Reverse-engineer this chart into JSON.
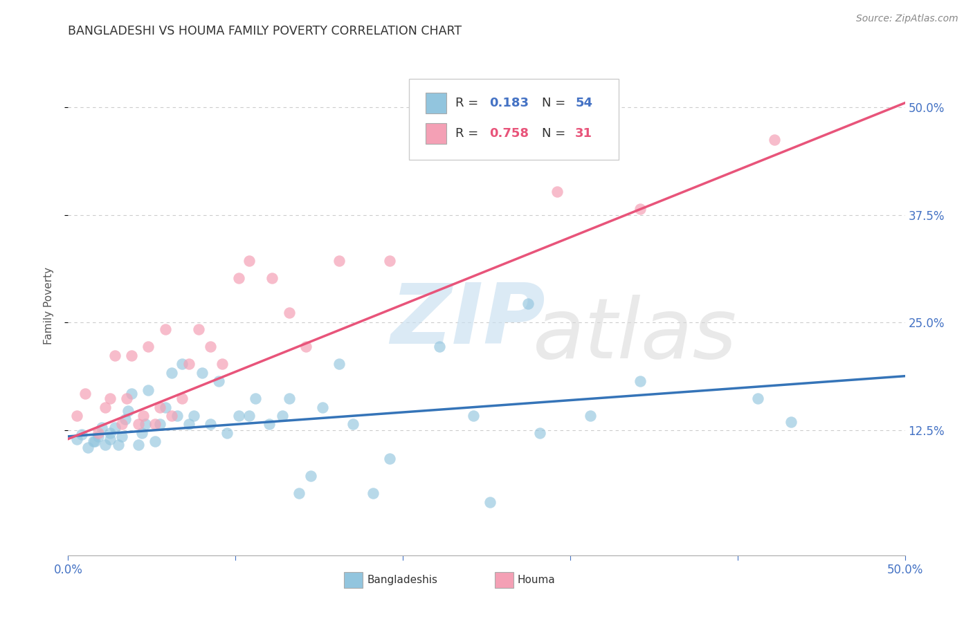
{
  "title": "BANGLADESHI VS HOUMA FAMILY POVERTY CORRELATION CHART",
  "source": "Source: ZipAtlas.com",
  "ylabel": "Family Poverty",
  "ytick_labels": [
    "12.5%",
    "25.0%",
    "37.5%",
    "50.0%"
  ],
  "ytick_values": [
    0.125,
    0.25,
    0.375,
    0.5
  ],
  "xlim": [
    0.0,
    0.5
  ],
  "ylim": [
    -0.02,
    0.56
  ],
  "blue_color": "#92c5de",
  "pink_color": "#f4a0b5",
  "blue_line_color": "#3574b8",
  "pink_line_color": "#e8547a",
  "background_color": "#ffffff",
  "grid_color": "#cccccc",
  "bangladeshi_x": [
    0.005,
    0.008,
    0.012,
    0.015,
    0.016,
    0.018,
    0.02,
    0.022,
    0.025,
    0.025,
    0.028,
    0.03,
    0.032,
    0.034,
    0.036,
    0.038,
    0.042,
    0.044,
    0.046,
    0.048,
    0.052,
    0.055,
    0.058,
    0.062,
    0.065,
    0.068,
    0.072,
    0.075,
    0.08,
    0.085,
    0.09,
    0.095,
    0.102,
    0.108,
    0.112,
    0.12,
    0.128,
    0.132,
    0.138,
    0.145,
    0.152,
    0.162,
    0.17,
    0.182,
    0.192,
    0.222,
    0.242,
    0.252,
    0.275,
    0.282,
    0.312,
    0.342,
    0.412,
    0.432
  ],
  "bangladeshi_y": [
    0.115,
    0.12,
    0.105,
    0.112,
    0.112,
    0.118,
    0.128,
    0.108,
    0.115,
    0.122,
    0.128,
    0.108,
    0.118,
    0.138,
    0.148,
    0.168,
    0.108,
    0.122,
    0.132,
    0.172,
    0.112,
    0.132,
    0.152,
    0.192,
    0.142,
    0.202,
    0.132,
    0.142,
    0.192,
    0.132,
    0.182,
    0.122,
    0.142,
    0.142,
    0.162,
    0.132,
    0.142,
    0.162,
    0.052,
    0.072,
    0.152,
    0.202,
    0.132,
    0.052,
    0.092,
    0.222,
    0.142,
    0.042,
    0.272,
    0.122,
    0.142,
    0.182,
    0.162,
    0.135
  ],
  "houma_x": [
    0.005,
    0.01,
    0.018,
    0.022,
    0.025,
    0.028,
    0.032,
    0.035,
    0.038,
    0.042,
    0.045,
    0.048,
    0.052,
    0.055,
    0.058,
    0.062,
    0.068,
    0.072,
    0.078,
    0.085,
    0.092,
    0.102,
    0.108,
    0.122,
    0.132,
    0.142,
    0.162,
    0.192,
    0.292,
    0.342,
    0.422
  ],
  "houma_y": [
    0.142,
    0.168,
    0.122,
    0.152,
    0.162,
    0.212,
    0.132,
    0.162,
    0.212,
    0.132,
    0.142,
    0.222,
    0.132,
    0.152,
    0.242,
    0.142,
    0.162,
    0.202,
    0.242,
    0.222,
    0.202,
    0.302,
    0.322,
    0.302,
    0.262,
    0.222,
    0.322,
    0.322,
    0.402,
    0.382,
    0.462
  ],
  "blue_line_x": [
    0.0,
    0.5
  ],
  "blue_line_y": [
    0.118,
    0.188
  ],
  "pink_line_x": [
    0.0,
    0.5
  ],
  "pink_line_y": [
    0.115,
    0.505
  ]
}
